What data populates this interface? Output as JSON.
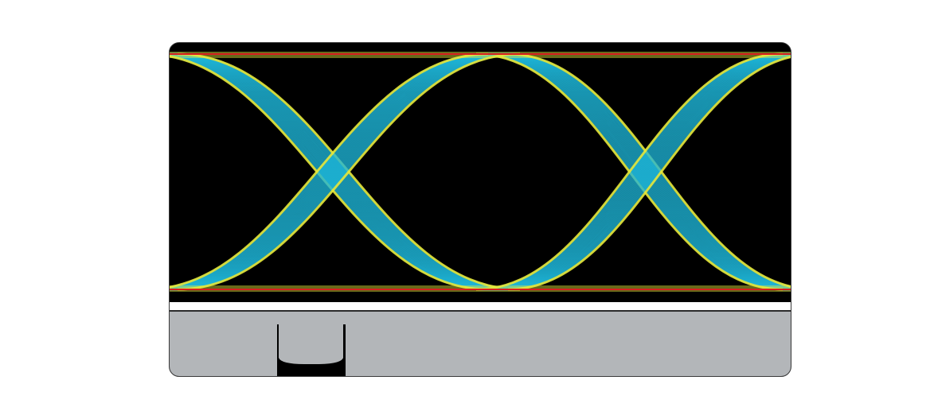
{
  "figure": {
    "type": "eye-diagram",
    "colors": {
      "background": "#000000",
      "trace_core": "#1fb6d8",
      "trace_edge": "#e8e83a",
      "rail_line": "#e02020",
      "histogram_bg": "#b3b6b9",
      "histogram_fill": "#000000",
      "separator": "#ffffff"
    },
    "eye": {
      "unit_intervals_shown": 2,
      "crossings": 2
    },
    "histogram": {
      "label": ""
    }
  }
}
